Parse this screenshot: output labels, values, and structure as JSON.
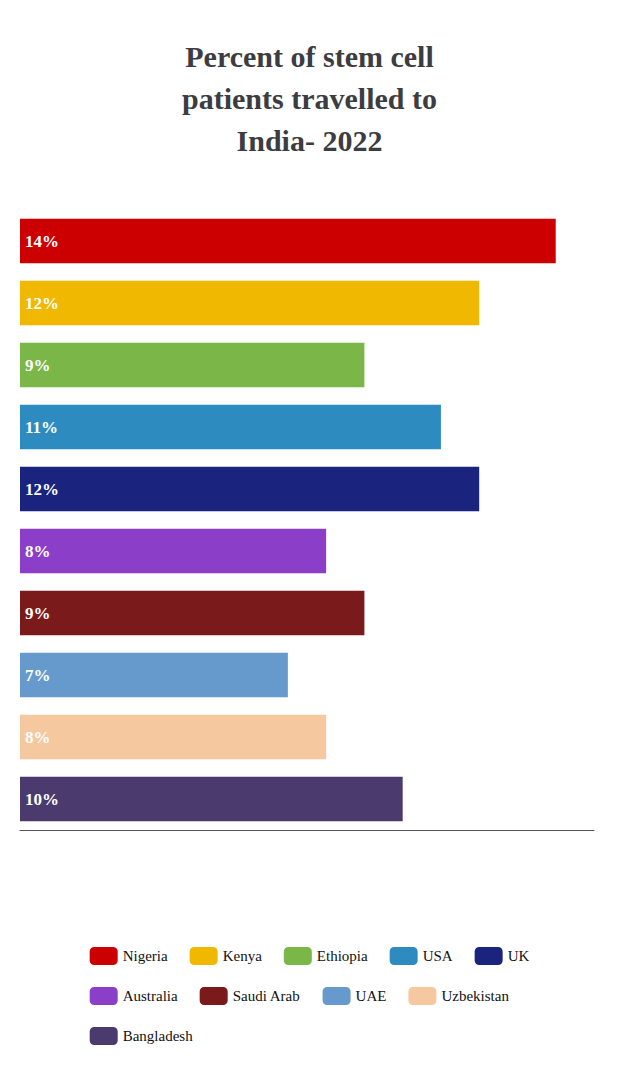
{
  "chart_data": {
    "type": "bar",
    "orientation": "horizontal",
    "title": "Percent of stem cell\npatients travelled to\nIndia- 2022",
    "categories": [
      "Nigeria",
      "Kenya",
      "Ethiopia",
      "USA",
      "UK",
      "Australia",
      "Saudi Arab",
      "UAE",
      "Uzbekistan",
      "Bangladesh"
    ],
    "values": [
      14,
      12,
      9,
      11,
      12,
      8,
      9,
      7,
      8,
      10
    ],
    "value_labels": [
      "14%",
      "12%",
      "9%",
      "11%",
      "12%",
      "8%",
      "9%",
      "7%",
      "8%",
      "10%"
    ],
    "colors": [
      "#cc0000",
      "#f0b800",
      "#7ab648",
      "#2e8bc0",
      "#1a237e",
      "#8b3fc8",
      "#7b1a1a",
      "#6699cc",
      "#f5c8a0",
      "#4b3a6e"
    ],
    "xlim": [
      0,
      15
    ],
    "data_labels": true,
    "tick_labels": false,
    "grid": false,
    "legend": "bottom"
  }
}
